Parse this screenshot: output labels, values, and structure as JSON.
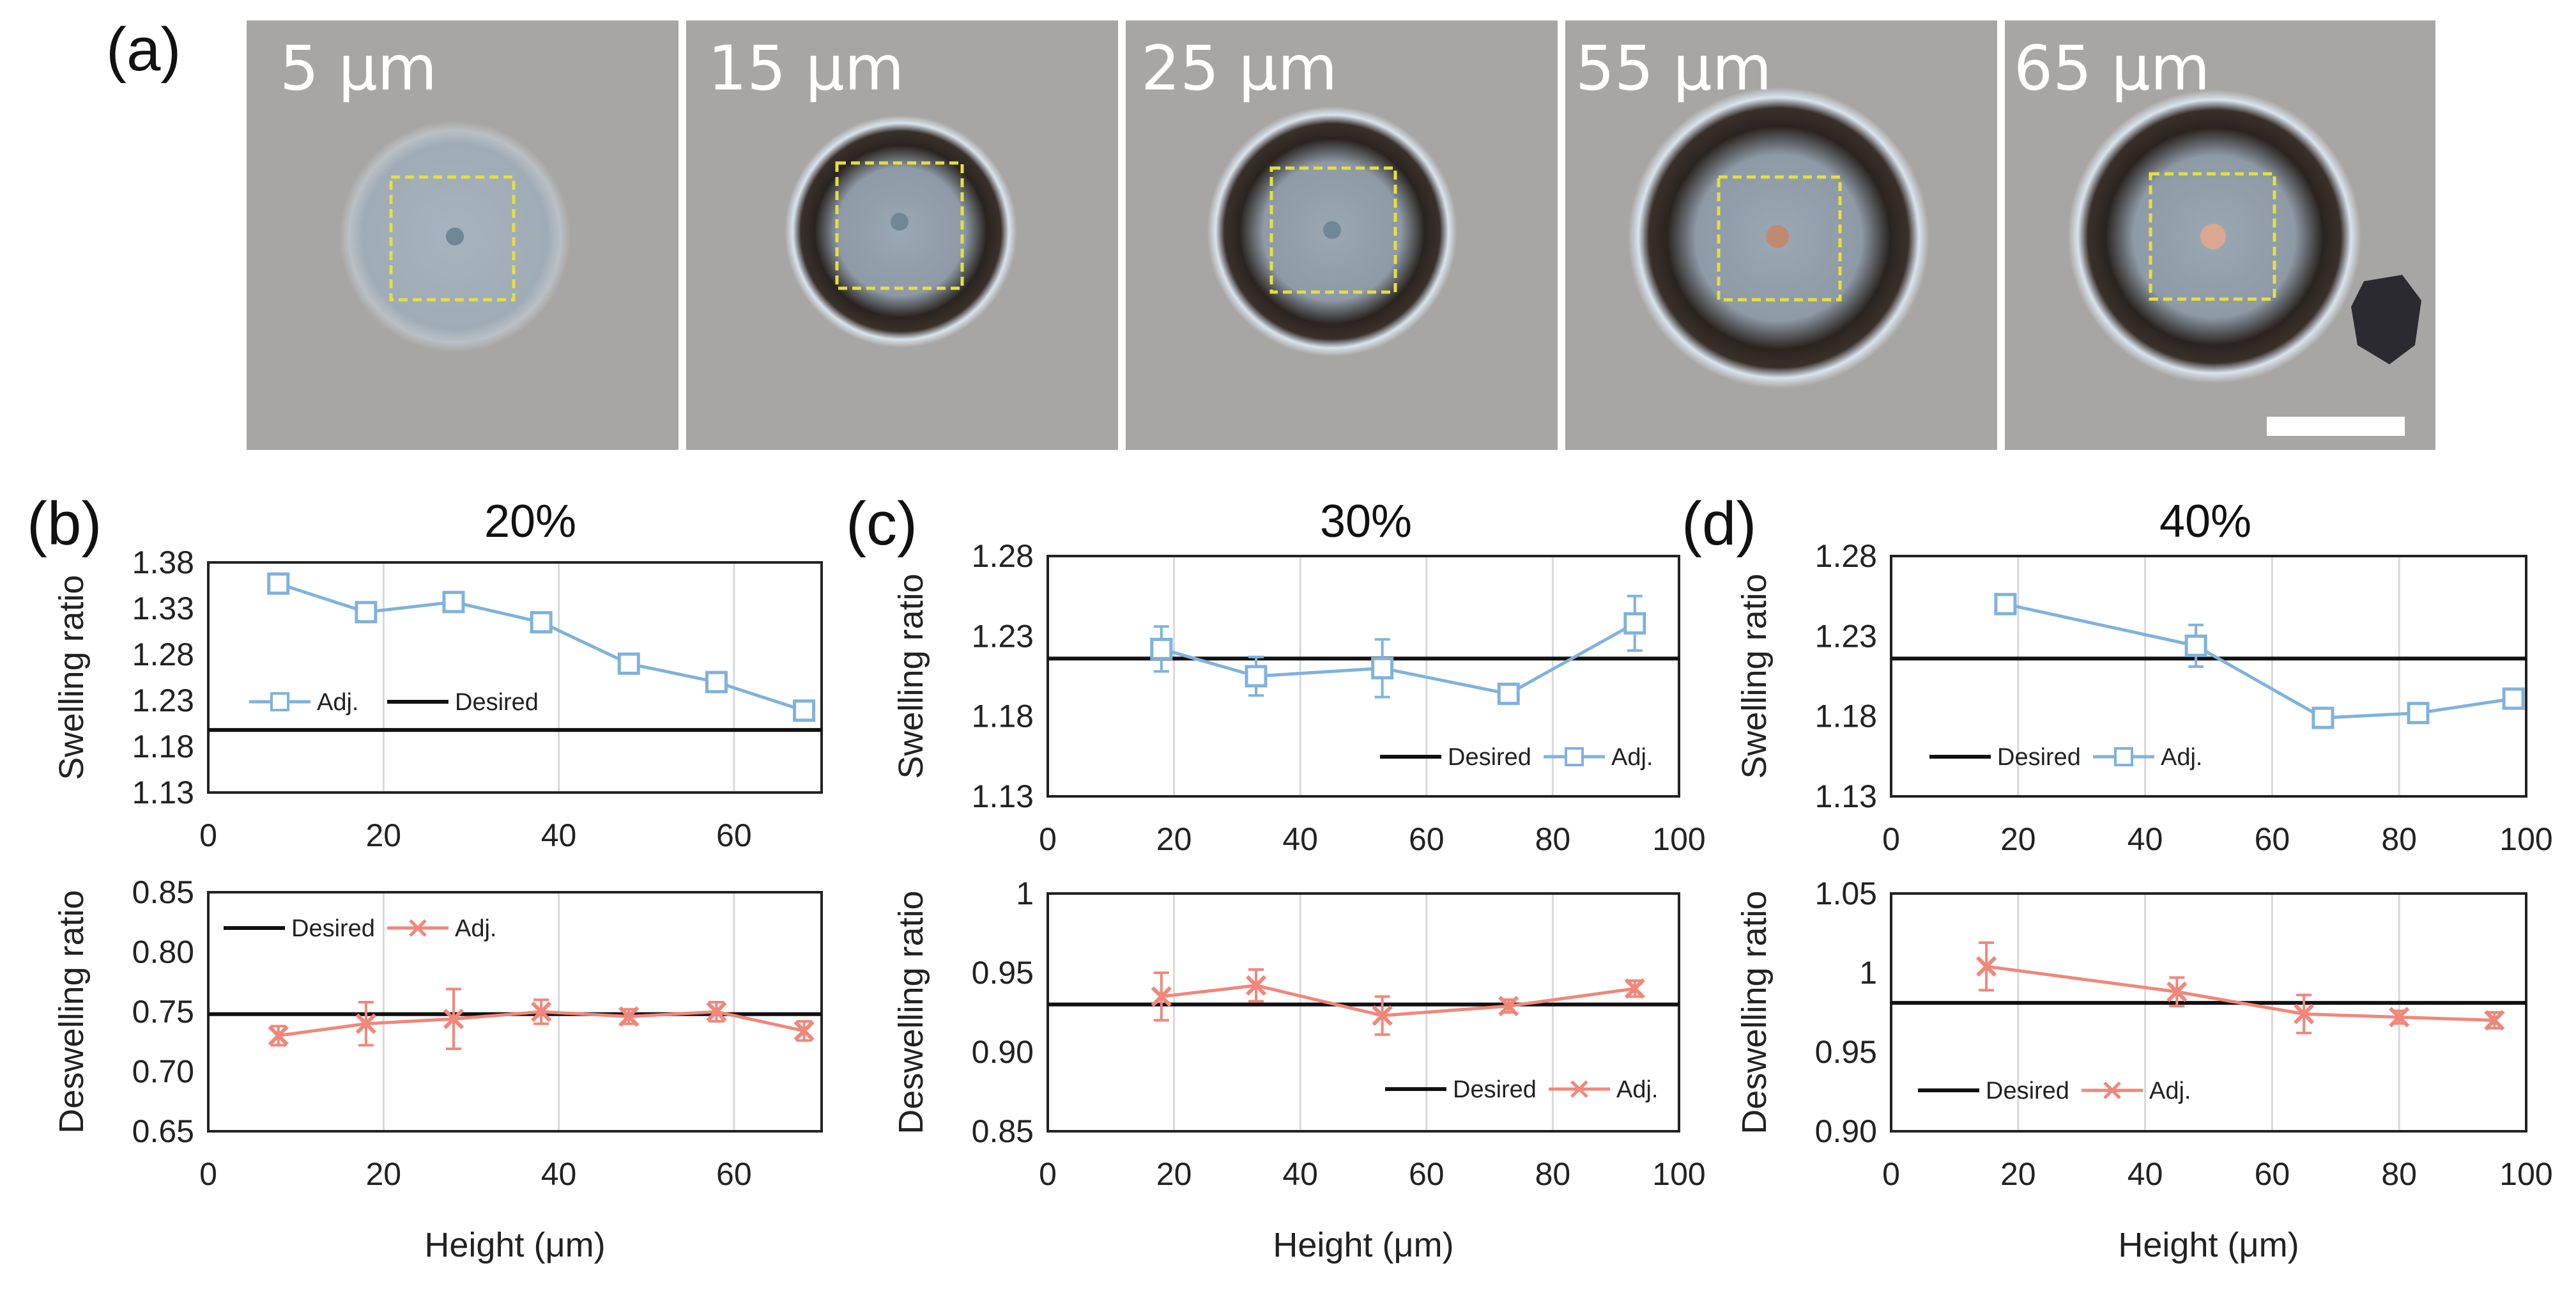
{
  "panel_a": {
    "letter": "(a)",
    "images": [
      {
        "label": "5 μm"
      },
      {
        "label": "15 μm"
      },
      {
        "label": "25 μm"
      },
      {
        "label": "55 μm"
      },
      {
        "label": "65 μm"
      }
    ]
  },
  "colors": {
    "adj_swelling": "#7fb2dc",
    "adj_deswelling": "#f0877a",
    "desired": "#111111",
    "grid": "#d9d9d9"
  },
  "chart_data": [
    {
      "id": "b-top",
      "panel": "(b)",
      "title": "20%",
      "type": "line",
      "xlabel": "",
      "ylabel": "Swelling ratio",
      "xlim": [
        0,
        70
      ],
      "xticks": [
        0,
        20,
        40,
        60
      ],
      "ylim": [
        1.13,
        1.38
      ],
      "yticks": [
        1.13,
        1.18,
        1.23,
        1.28,
        1.33,
        1.38
      ],
      "legend": [
        "Adj.",
        "Desired"
      ],
      "series": [
        {
          "name": "Adj.",
          "marker": "square",
          "x": [
            8,
            18,
            28,
            38,
            48,
            58,
            68
          ],
          "y": [
            1.357,
            1.326,
            1.337,
            1.315,
            1.27,
            1.25,
            1.219
          ],
          "err": [
            0.006,
            0.006,
            0.01,
            0.008,
            0.008,
            0.005,
            0.005
          ]
        },
        {
          "name": "Desired",
          "y_const": 1.198
        }
      ]
    },
    {
      "id": "b-bottom",
      "panel": "",
      "title": "",
      "type": "line",
      "xlabel": "Height (μm)",
      "ylabel": "Deswelling ratio",
      "xlim": [
        0,
        70
      ],
      "xticks": [
        0,
        20,
        40,
        60
      ],
      "ylim": [
        0.65,
        0.85
      ],
      "yticks": [
        0.65,
        0.7,
        0.75,
        0.8,
        0.85
      ],
      "legend": [
        "Desired",
        "Adj."
      ],
      "series": [
        {
          "name": "Adj.",
          "marker": "x",
          "x": [
            8,
            18,
            28,
            38,
            48,
            58,
            68
          ],
          "y": [
            0.73,
            0.74,
            0.744,
            0.75,
            0.746,
            0.75,
            0.734
          ],
          "err": [
            0.008,
            0.018,
            0.025,
            0.01,
            0.006,
            0.008,
            0.008
          ]
        },
        {
          "name": "Desired",
          "y_const": 0.748
        }
      ]
    },
    {
      "id": "c-top",
      "panel": "(c)",
      "title": "30%",
      "type": "line",
      "xlabel": "",
      "ylabel": "Swelling ratio",
      "xlim": [
        0,
        100
      ],
      "xticks": [
        0,
        20,
        40,
        60,
        80,
        100
      ],
      "ylim": [
        1.13,
        1.28
      ],
      "yticks": [
        1.13,
        1.18,
        1.23,
        1.28
      ],
      "legend": [
        "Desired",
        "Adj."
      ],
      "series": [
        {
          "name": "Adj.",
          "marker": "square",
          "x": [
            18,
            33,
            53,
            73,
            93
          ],
          "y": [
            1.222,
            1.205,
            1.21,
            1.194,
            1.238
          ],
          "err": [
            0.014,
            0.012,
            0.018,
            0.006,
            0.017
          ]
        },
        {
          "name": "Desired",
          "y_const": 1.216
        }
      ]
    },
    {
      "id": "c-bottom",
      "panel": "",
      "title": "",
      "type": "line",
      "xlabel": "Height (μm)",
      "ylabel": "Deswelling ratio",
      "xlim": [
        0,
        100
      ],
      "xticks": [
        0,
        20,
        40,
        60,
        80,
        100
      ],
      "ylim": [
        0.85,
        1.0
      ],
      "yticks": [
        0.85,
        0.9,
        0.95,
        1
      ],
      "legend": [
        "Desired",
        "Adj."
      ],
      "series": [
        {
          "name": "Adj.",
          "marker": "x",
          "x": [
            18,
            33,
            53,
            73,
            93
          ],
          "y": [
            0.935,
            0.942,
            0.923,
            0.929,
            0.94
          ],
          "err": [
            0.015,
            0.01,
            0.012,
            0.004,
            0.005
          ]
        },
        {
          "name": "Desired",
          "y_const": 0.93
        }
      ]
    },
    {
      "id": "d-top",
      "panel": "(d)",
      "title": "40%",
      "type": "line",
      "xlabel": "",
      "ylabel": "Swelling ratio",
      "xlim": [
        0,
        100
      ],
      "xticks": [
        0,
        20,
        40,
        60,
        80,
        100
      ],
      "ylim": [
        1.13,
        1.28
      ],
      "yticks": [
        1.13,
        1.18,
        1.23,
        1.28
      ],
      "legend": [
        "Desired",
        "Adj."
      ],
      "series": [
        {
          "name": "Adj.",
          "marker": "square",
          "x": [
            18,
            48,
            68,
            83,
            98
          ],
          "y": [
            1.25,
            1.224,
            1.179,
            1.182,
            1.191
          ],
          "err": [
            0.004,
            0.013,
            0.005,
            0.004,
            0.005
          ]
        },
        {
          "name": "Desired",
          "y_const": 1.216
        }
      ]
    },
    {
      "id": "d-bottom",
      "panel": "",
      "title": "",
      "type": "line",
      "xlabel": "Height (μm)",
      "ylabel": "Deswelling ratio",
      "xlim": [
        0,
        100
      ],
      "xticks": [
        0,
        20,
        40,
        60,
        80,
        100
      ],
      "ylim": [
        0.9,
        1.05
      ],
      "yticks": [
        0.9,
        0.95,
        1,
        1.05
      ],
      "legend": [
        "Desired",
        "Adj."
      ],
      "series": [
        {
          "name": "Adj.",
          "marker": "x",
          "x": [
            15,
            45,
            65,
            80,
            95
          ],
          "y": [
            1.004,
            0.988,
            0.974,
            0.972,
            0.97
          ],
          "err": [
            0.015,
            0.009,
            0.012,
            0.004,
            0.005
          ]
        },
        {
          "name": "Desired",
          "y_const": 0.981
        }
      ]
    }
  ]
}
